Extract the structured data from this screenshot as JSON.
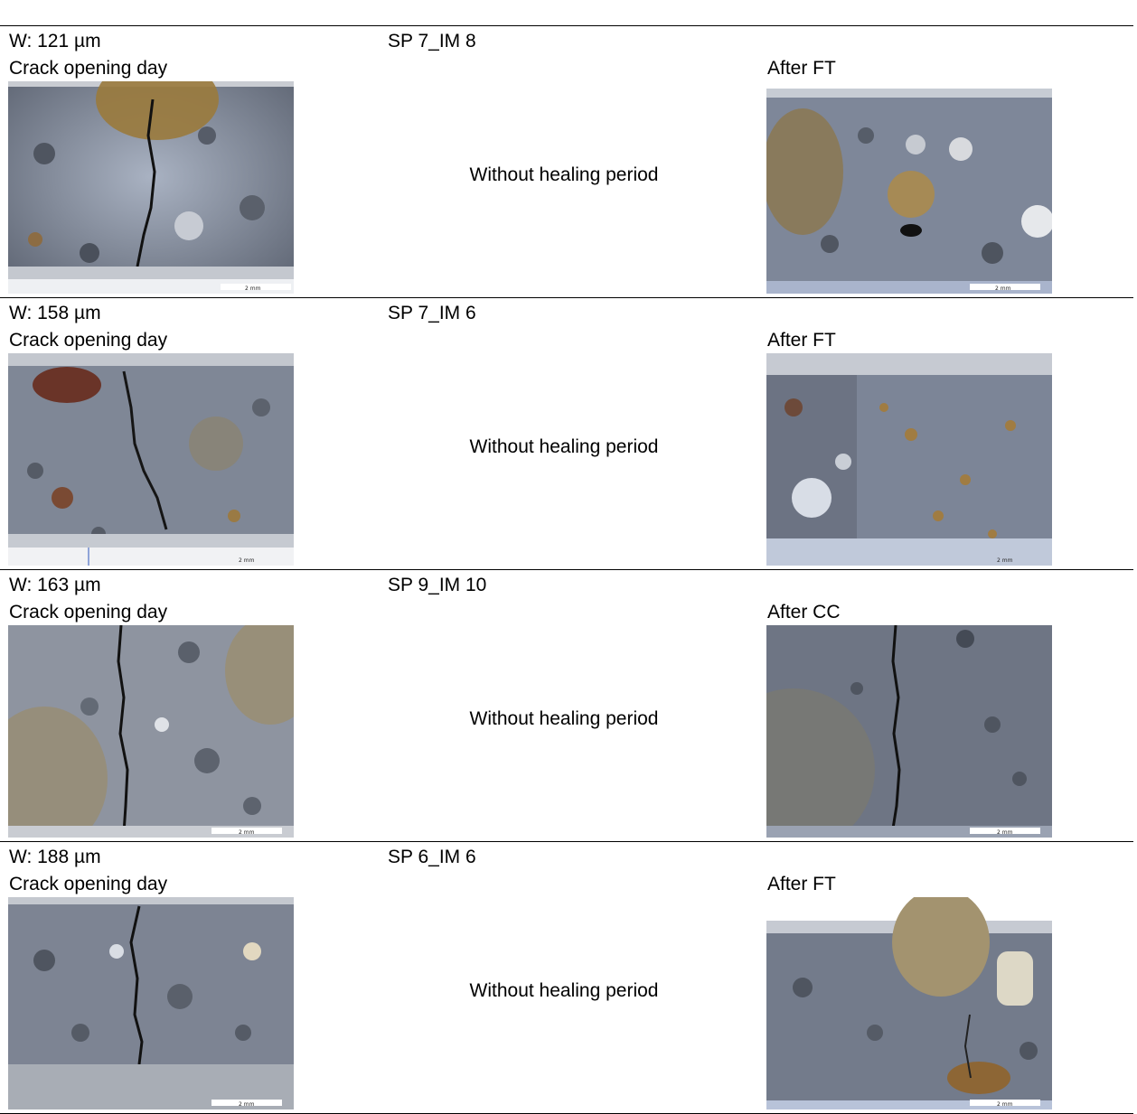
{
  "rows": [
    {
      "width_label": "W: 121 µm",
      "left_caption": "Crack opening day",
      "specimen": "SP 7_IM 8",
      "middle_text": "Without healing period",
      "right_caption": "After FT",
      "scale_text": "2 mm"
    },
    {
      "width_label": "W: 158 µm",
      "left_caption": "Crack opening day",
      "specimen": "SP 7_IM 6",
      "middle_text": "Without healing period",
      "right_caption": "After FT",
      "scale_text": "2 mm"
    },
    {
      "width_label": "W: 163 µm",
      "left_caption": "Crack opening day",
      "specimen": "SP 9_IM 10",
      "middle_text": "Without healing period",
      "right_caption": "After CC",
      "scale_text": "2 mm"
    },
    {
      "width_label": "W: 188 µm",
      "left_caption": "Crack opening day",
      "specimen": "SP 6_IM 6",
      "middle_text": "Without healing period",
      "right_caption": "After FT",
      "scale_text": "2 mm"
    }
  ]
}
